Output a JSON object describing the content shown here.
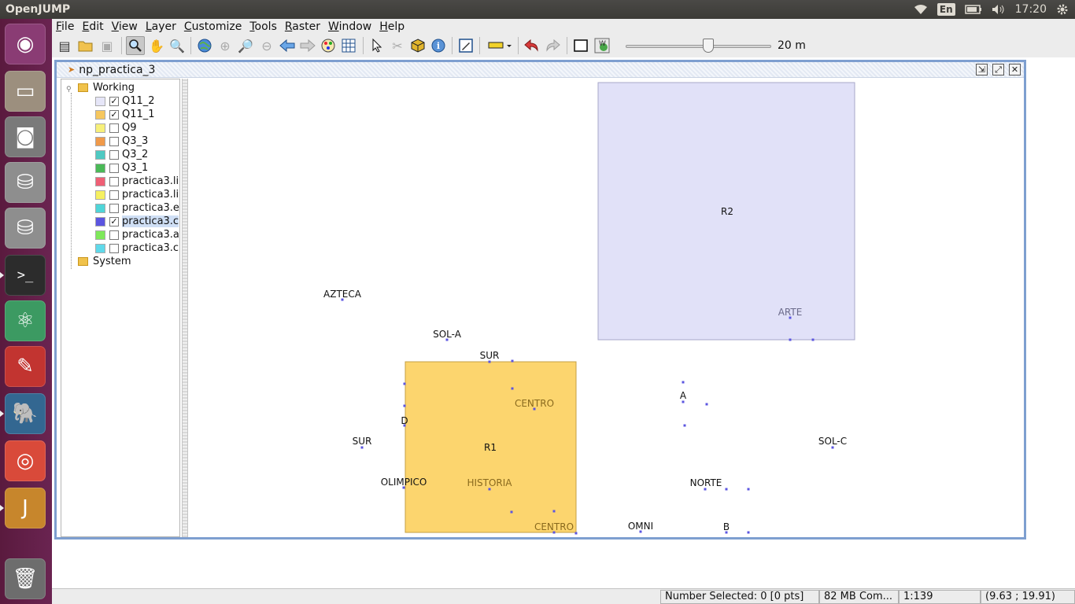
{
  "top_panel": {
    "app_name": "OpenJUMP",
    "keyboard": "En",
    "clock": "17:20"
  },
  "launcher": {
    "items": [
      {
        "name": "ubuntu-dash",
        "glyph": "◉",
        "color": "#8a3c74"
      },
      {
        "name": "files",
        "glyph": "▭",
        "color": "#9c8f7e"
      },
      {
        "name": "camera",
        "glyph": "◙",
        "color": "#7a7a7a"
      },
      {
        "name": "drive-1",
        "glyph": "⛁",
        "color": "#8e8e8e"
      },
      {
        "name": "drive-2",
        "glyph": "⛁",
        "color": "#8e8e8e"
      },
      {
        "name": "terminal",
        "glyph": ">_",
        "color": "#2c2c2c"
      },
      {
        "name": "atom",
        "glyph": "⚛",
        "color": "#3c9a62"
      },
      {
        "name": "pdf-reader",
        "glyph": "✎",
        "color": "#c23430"
      },
      {
        "name": "postgres",
        "glyph": "🐘",
        "color": "#336791"
      },
      {
        "name": "chrome",
        "glyph": "◎",
        "color": "#d94a3a"
      },
      {
        "name": "openjump",
        "glyph": "J",
        "color": "#c7862c"
      },
      {
        "name": "trash",
        "glyph": "🗑",
        "color": "#6d6d6d"
      }
    ]
  },
  "menubar": [
    {
      "label": "File"
    },
    {
      "label": "Edit"
    },
    {
      "label": "View"
    },
    {
      "label": "Layer"
    },
    {
      "label": "Customize"
    },
    {
      "label": "Tools"
    },
    {
      "label": "Raster"
    },
    {
      "label": "Window"
    },
    {
      "label": "Help"
    }
  ],
  "toolbar": {
    "zoom_label": "20 m"
  },
  "frame": {
    "title": "np_practica_3"
  },
  "tree": {
    "working": "Working",
    "system": "System",
    "layers": [
      {
        "label": "Q11_2",
        "color": "#e6e6f8",
        "checked": "✓"
      },
      {
        "label": "Q11_1",
        "color": "#f6c75e",
        "checked": "✓"
      },
      {
        "label": "Q9",
        "color": "#f7f07a",
        "checked": ""
      },
      {
        "label": "Q3_3",
        "color": "#f09a4a",
        "checked": ""
      },
      {
        "label": "Q3_2",
        "color": "#4fc9c2",
        "checked": ""
      },
      {
        "label": "Q3_1",
        "color": "#4ab957",
        "checked": ""
      },
      {
        "label": "practica3.li",
        "color": "#ef5f75",
        "checked": ""
      },
      {
        "label": "practica3.li",
        "color": "#f6f060",
        "checked": ""
      },
      {
        "label": "practica3.e",
        "color": "#4fd5d8",
        "checked": ""
      },
      {
        "label": "practica3.c",
        "color": "#5b55e0",
        "checked": "✓"
      },
      {
        "label": "practica3.a",
        "color": "#7ee85a",
        "checked": ""
      },
      {
        "label": "practica3.c",
        "color": "#5fd9ea",
        "checked": ""
      }
    ]
  },
  "map": {
    "polygons": [
      {
        "label": "R2",
        "color": "#e1e1f8",
        "stroke": "#a7a7c8"
      },
      {
        "label": "R1",
        "color": "#fcd56e",
        "stroke": "#c4a044"
      }
    ],
    "labels": [
      {
        "text": "AZTECA",
        "color": "#111111"
      },
      {
        "text": "SOL-A",
        "color": "#111111"
      },
      {
        "text": "SUR",
        "color": "#111111"
      },
      {
        "text": "CENTRO",
        "color": "#8a6a1e"
      },
      {
        "text": "D",
        "color": "#111111"
      },
      {
        "text": "SUR",
        "color": "#111111"
      },
      {
        "text": "OLIMPICO",
        "color": "#111111"
      },
      {
        "text": "HISTORIA",
        "color": "#8a6a1e"
      },
      {
        "text": "CENTRO",
        "color": "#8a6a1e"
      },
      {
        "text": "OMNI",
        "color": "#111111"
      },
      {
        "text": "A",
        "color": "#111111"
      },
      {
        "text": "NORTE",
        "color": "#111111"
      },
      {
        "text": "B",
        "color": "#111111"
      },
      {
        "text": "SOL-C",
        "color": "#111111"
      },
      {
        "text": "ARTE",
        "color": "#6b6b8a"
      }
    ]
  },
  "statusbar": {
    "selected": "Number Selected: 0 [0 pts]",
    "memory": "82 MB Com...",
    "scale": "1:139",
    "coords": "(9.63 ; 19.91)"
  }
}
